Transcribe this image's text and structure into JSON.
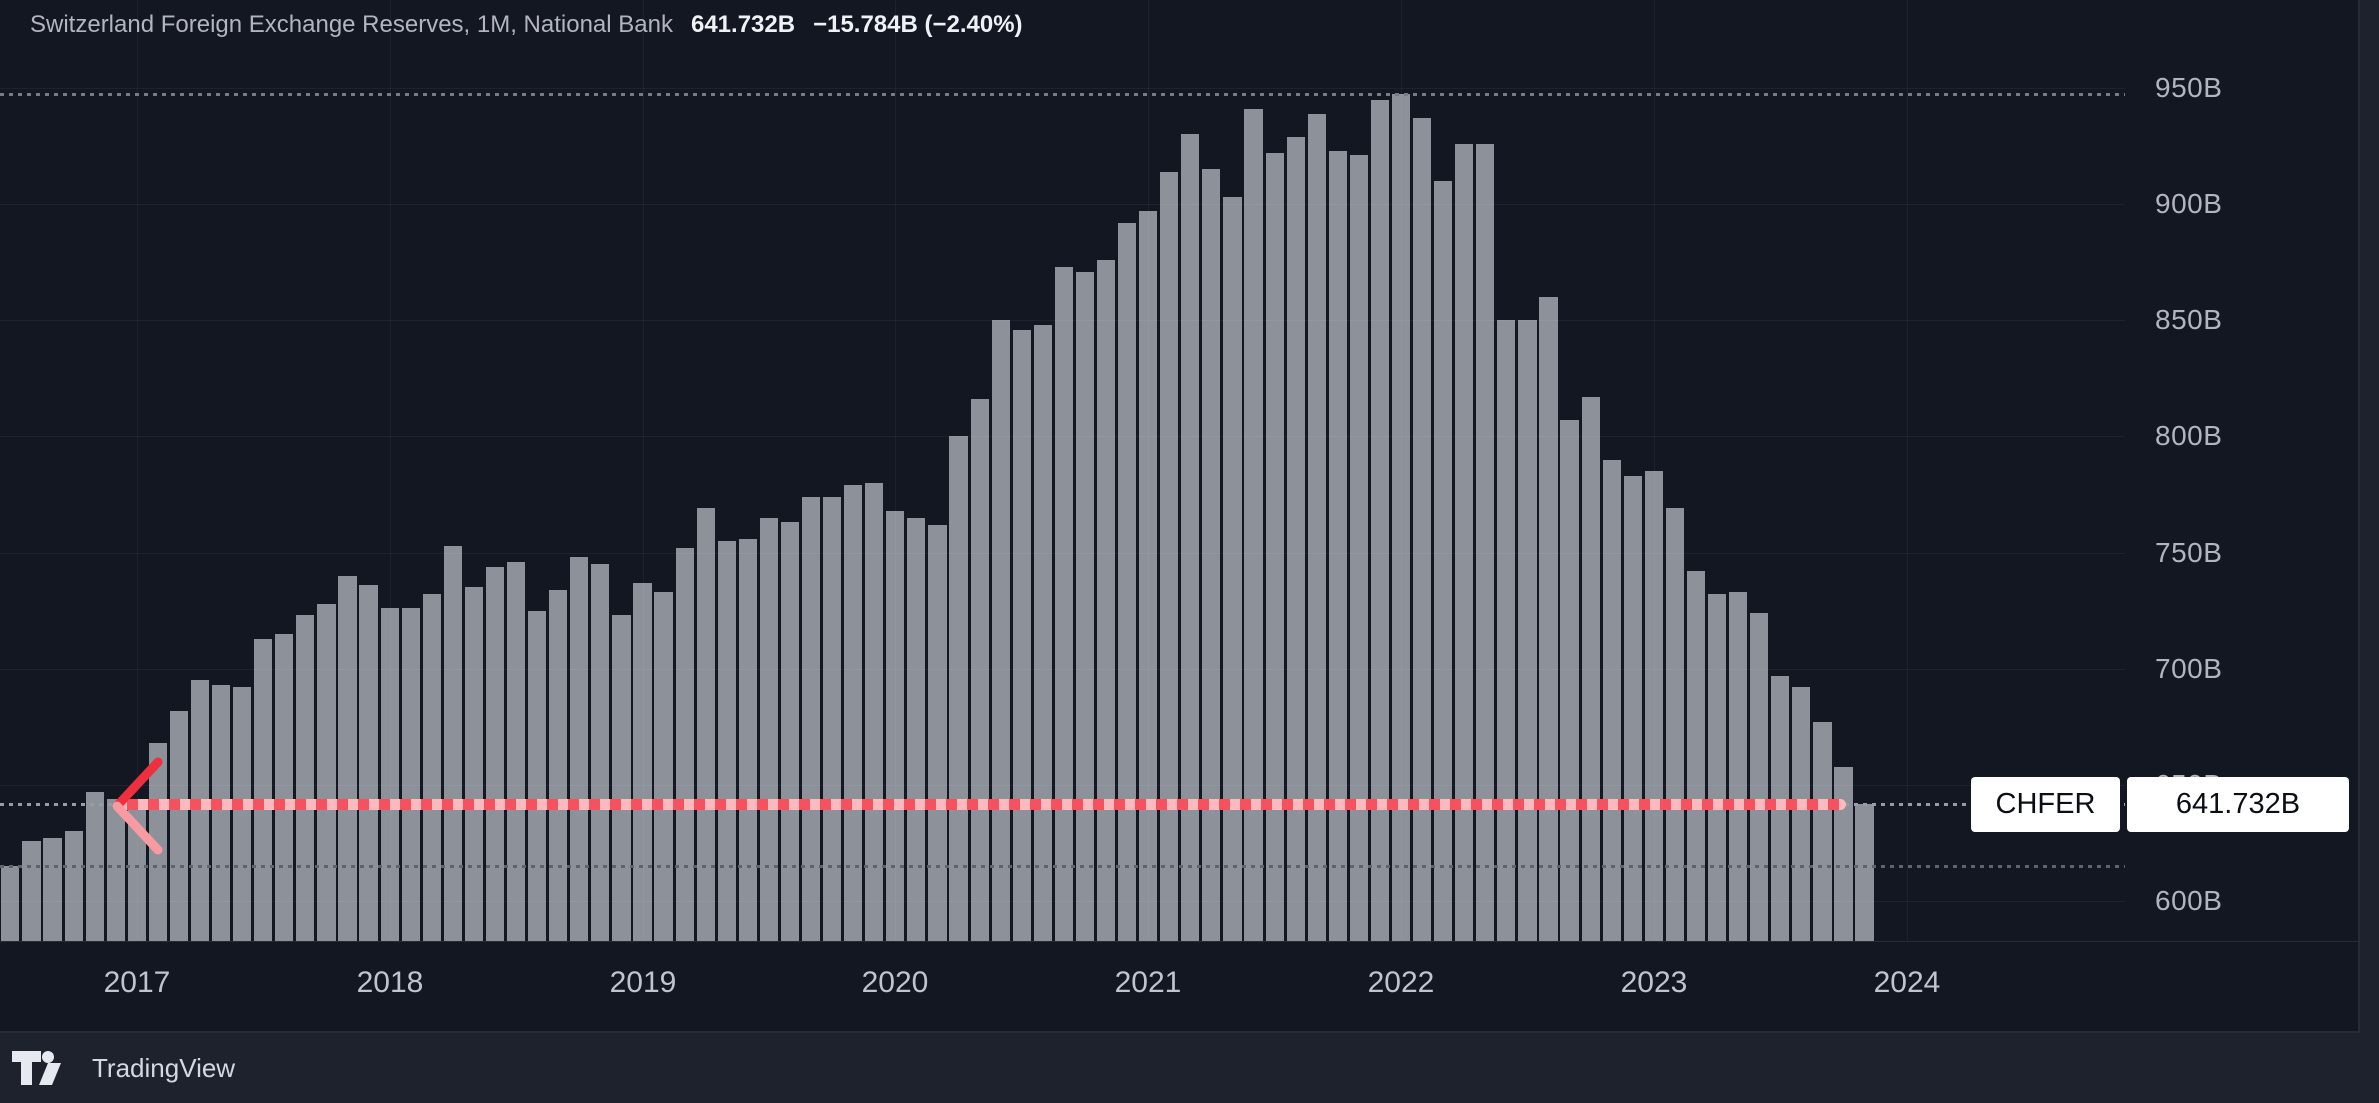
{
  "header": {
    "title": "Switzerland Foreign Exchange Reserves, 1M, National Bank",
    "last_value": "641.732B",
    "change": "−15.784B (−2.40%)"
  },
  "price_tag": {
    "symbol": "CHFER",
    "value": "641.732B"
  },
  "attribution": {
    "brand": "TradingView"
  },
  "colors": {
    "background": "#131722",
    "page": "#1e222d",
    "bar": "#8d919a",
    "red_line": "#f4525e",
    "arrow_dark": "#ee2f3d",
    "arrow_light": "#f79aa1",
    "tag_bg": "#ffffff",
    "axis_text": "#b2b5be",
    "price_dots": "#989ca6",
    "high_dots": "#767b88",
    "low_dots": "#5e6370"
  },
  "chart_data": {
    "type": "bar",
    "title": "Switzerland Foreign Exchange Reserves (CHF)",
    "x": [
      "2016-07",
      "2016-08",
      "2016-09",
      "2016-10",
      "2016-11",
      "2016-12",
      "2017-01",
      "2017-02",
      "2017-03",
      "2017-04",
      "2017-05",
      "2017-06",
      "2017-07",
      "2017-08",
      "2017-09",
      "2017-10",
      "2017-11",
      "2017-12",
      "2018-01",
      "2018-02",
      "2018-03",
      "2018-04",
      "2018-05",
      "2018-06",
      "2018-07",
      "2018-08",
      "2018-09",
      "2018-10",
      "2018-11",
      "2018-12",
      "2019-01",
      "2019-02",
      "2019-03",
      "2019-04",
      "2019-05",
      "2019-06",
      "2019-07",
      "2019-08",
      "2019-09",
      "2019-10",
      "2019-11",
      "2019-12",
      "2020-01",
      "2020-02",
      "2020-03",
      "2020-04",
      "2020-05",
      "2020-06",
      "2020-07",
      "2020-08",
      "2020-09",
      "2020-10",
      "2020-11",
      "2020-12",
      "2021-01",
      "2021-02",
      "2021-03",
      "2021-04",
      "2021-05",
      "2021-06",
      "2021-07",
      "2021-08",
      "2021-09",
      "2021-10",
      "2021-11",
      "2021-12",
      "2022-01",
      "2022-02",
      "2022-03",
      "2022-04",
      "2022-05",
      "2022-06",
      "2022-07",
      "2022-08",
      "2022-09",
      "2022-10",
      "2022-11",
      "2022-12",
      "2023-01",
      "2023-02",
      "2023-03",
      "2023-04",
      "2023-05",
      "2023-06",
      "2023-07",
      "2023-08",
      "2023-09",
      "2023-10",
      "2023-11"
    ],
    "values": [
      615,
      626,
      627,
      630,
      647,
      644,
      642,
      668,
      682,
      695,
      693,
      692,
      713,
      715,
      723,
      728,
      740,
      736,
      726,
      726,
      732,
      753,
      735,
      744,
      746,
      725,
      734,
      748,
      745,
      723,
      737,
      733,
      752,
      769,
      755,
      756,
      765,
      763,
      774,
      774,
      779,
      780,
      768,
      765,
      762,
      800,
      816,
      850,
      846,
      848,
      873,
      871,
      876,
      892,
      897,
      914,
      930,
      915,
      903,
      941,
      922,
      929,
      939,
      923,
      921,
      945,
      947.4,
      937,
      910,
      926,
      926,
      850,
      850,
      860,
      807,
      817,
      790,
      783,
      785,
      769,
      742,
      732,
      733,
      724,
      697,
      692,
      677,
      657.5,
      641.732
    ],
    "xlabel": "",
    "ylabel": "",
    "ylim": [
      600,
      950
    ],
    "y_ticks": [
      950,
      900,
      850,
      800,
      750,
      700,
      650,
      600
    ],
    "y_tick_suffix": "B",
    "x_tick_years": [
      2017,
      2018,
      2019,
      2020,
      2021,
      2022,
      2023,
      2024
    ],
    "grid": true,
    "legend_position": "none",
    "price_lines": {
      "current": 641.732,
      "high": 947.4,
      "low": 615
    }
  }
}
